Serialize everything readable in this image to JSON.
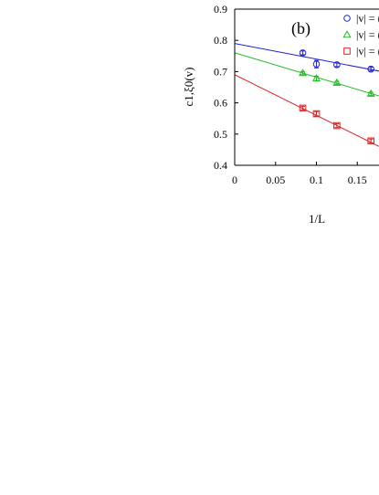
{
  "chart_data": {
    "type": "scatter",
    "panel_label": "(b)",
    "xlabel": "1/L",
    "ylabel": "c1,ξ0(v)",
    "xlim": [
      0,
      0.2
    ],
    "ylim": [
      0.4,
      0.9
    ],
    "x_ticks": [
      0,
      0.05,
      0.1,
      0.15
    ],
    "x_tick_labels": [
      "0",
      "0.05",
      "0.1",
      "0.15"
    ],
    "y_ticks": [
      0.4,
      0.5,
      0.6,
      0.7,
      0.8,
      0.9
    ],
    "y_tick_labels": [
      "0.4",
      "0.5",
      "0.6",
      "0.7",
      "0.8",
      "0.9"
    ],
    "legend_position": "top-right",
    "series": [
      {
        "name": "|v| = (",
        "color": "#2222cc",
        "marker": "circle",
        "x": [
          0.0833,
          0.1,
          0.125,
          0.1667
        ],
        "y": [
          0.76,
          0.724,
          0.722,
          0.708
        ],
        "yerr": [
          0.006,
          0.012,
          0.006,
          0.006
        ],
        "fit": {
          "intercept": 0.79,
          "slope": -0.5
        }
      },
      {
        "name": "|v| = (",
        "color": "#22bb22",
        "marker": "triangle",
        "x": [
          0.0833,
          0.1,
          0.125,
          0.1667
        ],
        "y": [
          0.695,
          0.678,
          0.664,
          0.629
        ],
        "yerr": [
          0.005,
          0.007,
          0.005,
          0.005
        ],
        "fit": {
          "intercept": 0.76,
          "slope": -0.78
        }
      },
      {
        "name": "|v| = (",
        "color": "#dd2222",
        "marker": "square",
        "x": [
          0.0833,
          0.1,
          0.125,
          0.1667
        ],
        "y": [
          0.583,
          0.565,
          0.527,
          0.478
        ],
        "yerr": [
          0.006,
          0.007,
          0.006,
          0.006
        ],
        "fit": {
          "intercept": 0.69,
          "slope": -1.3
        }
      }
    ]
  }
}
